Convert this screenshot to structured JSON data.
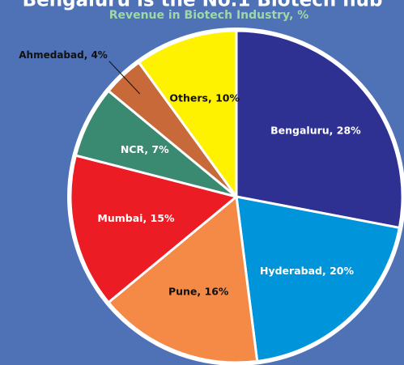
{
  "chart_data": {
    "type": "pie",
    "title": "Bengaluru is the No.1 Biotech hub",
    "subtitle": "Revenue in Biotech Industry, %",
    "values": [
      28,
      20,
      16,
      15,
      7,
      4,
      10
    ],
    "value_labels": [
      "Bengaluru, 28%",
      "Hyderabad, 20%",
      "Pune, 16%",
      "Mumbai, 15%",
      "NCR, 7%",
      "Ahmedabad, 4%",
      "Others, 10%"
    ],
    "colors": [
      "#2e3192",
      "#0095da",
      "#f58a46",
      "#ec1c24",
      "#3a8a72",
      "#c8693a",
      "#fff200"
    ]
  }
}
